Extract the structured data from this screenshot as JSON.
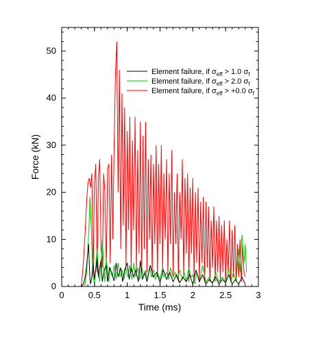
{
  "chart_data": {
    "type": "line",
    "xlabel": "Time (ms)",
    "ylabel": "Force (kN)",
    "xlim": [
      0,
      3
    ],
    "ylim": [
      0,
      55
    ],
    "x_ticks": [
      0,
      0.5,
      1,
      1.5,
      2,
      2.5,
      3
    ],
    "x_tick_labels": [
      "0",
      "0.5",
      "1",
      "1.5",
      "2",
      "2.5",
      "3"
    ],
    "y_ticks": [
      0,
      10,
      20,
      30,
      40,
      50
    ],
    "y_tick_labels": [
      "0",
      "10",
      "20",
      "30",
      "40",
      "50"
    ],
    "grid": false,
    "legend_position": "top-right",
    "series": [
      {
        "name": "Element failure, if σ_eff > 1.0 σ_f",
        "legend_main": "Element failure, if σ",
        "legend_sub1": "eff",
        "legend_mid": " > 1.0 σ",
        "legend_sub2": "f",
        "color": "#000000",
        "points": [
          [
            0.3,
            0
          ],
          [
            0.33,
            0.5
          ],
          [
            0.36,
            2
          ],
          [
            0.38,
            4.5
          ],
          [
            0.4,
            7.5
          ],
          [
            0.41,
            9
          ],
          [
            0.42,
            5
          ],
          [
            0.43,
            2
          ],
          [
            0.44,
            0.5
          ],
          [
            0.46,
            2
          ],
          [
            0.48,
            5
          ],
          [
            0.5,
            1.5
          ],
          [
            0.52,
            3.5
          ],
          [
            0.54,
            6
          ],
          [
            0.56,
            2
          ],
          [
            0.58,
            4
          ],
          [
            0.6,
            5.5
          ],
          [
            0.62,
            1
          ],
          [
            0.65,
            3.5
          ],
          [
            0.68,
            4.5
          ],
          [
            0.7,
            1
          ],
          [
            0.73,
            4
          ],
          [
            0.76,
            3
          ],
          [
            0.8,
            1.2
          ],
          [
            0.83,
            5
          ],
          [
            0.86,
            2
          ],
          [
            0.9,
            4
          ],
          [
            0.93,
            1
          ],
          [
            0.96,
            3.5
          ],
          [
            1.0,
            5
          ],
          [
            1.03,
            1.5
          ],
          [
            1.06,
            4
          ],
          [
            1.1,
            2
          ],
          [
            1.13,
            3.5
          ],
          [
            1.17,
            1
          ],
          [
            1.2,
            5.5
          ],
          [
            1.23,
            1.5
          ],
          [
            1.27,
            3
          ],
          [
            1.3,
            1
          ],
          [
            1.35,
            4.5
          ],
          [
            1.4,
            2
          ],
          [
            1.45,
            3
          ],
          [
            1.5,
            0.8
          ],
          [
            1.55,
            3.5
          ],
          [
            1.6,
            1.5
          ],
          [
            1.65,
            3
          ],
          [
            1.7,
            1
          ],
          [
            1.75,
            2.5
          ],
          [
            1.8,
            0.8
          ],
          [
            1.85,
            2
          ],
          [
            1.9,
            1
          ],
          [
            1.95,
            2.5
          ],
          [
            2.0,
            0.5
          ],
          [
            2.05,
            3.5
          ],
          [
            2.1,
            1
          ],
          [
            2.15,
            2.5
          ],
          [
            2.2,
            0.5
          ],
          [
            2.25,
            1.5
          ],
          [
            2.3,
            0.8
          ],
          [
            2.35,
            2
          ],
          [
            2.4,
            0.5
          ],
          [
            2.45,
            1.5
          ],
          [
            2.5,
            0.8
          ],
          [
            2.55,
            2.5
          ],
          [
            2.6,
            0.5
          ],
          [
            2.65,
            1.5
          ],
          [
            2.7,
            0.5
          ],
          [
            2.75,
            2
          ],
          [
            2.8,
            0.5
          ]
        ]
      },
      {
        "name": "Element failure, if σ_eff > 2.0 σ_f",
        "legend_main": "Element failure, if σ",
        "legend_sub1": "eff",
        "legend_mid": " > 2.0 σ",
        "legend_sub2": "f",
        "color": "#00cc00",
        "points": [
          [
            0.35,
            0
          ],
          [
            0.38,
            3
          ],
          [
            0.4,
            8
          ],
          [
            0.42,
            14
          ],
          [
            0.43,
            19
          ],
          [
            0.44,
            17
          ],
          [
            0.46,
            8
          ],
          [
            0.48,
            2
          ],
          [
            0.5,
            0.5
          ],
          [
            0.52,
            4
          ],
          [
            0.54,
            8
          ],
          [
            0.56,
            3
          ],
          [
            0.58,
            1
          ],
          [
            0.6,
            5
          ],
          [
            0.62,
            10
          ],
          [
            0.64,
            4
          ],
          [
            0.66,
            1
          ],
          [
            0.68,
            6
          ],
          [
            0.7,
            3
          ],
          [
            0.72,
            1
          ],
          [
            0.74,
            4
          ],
          [
            0.77,
            2
          ],
          [
            0.8,
            4.5
          ],
          [
            0.83,
            1.5
          ],
          [
            0.86,
            5
          ],
          [
            0.89,
            2
          ],
          [
            0.92,
            3.5
          ],
          [
            0.95,
            1.5
          ],
          [
            0.98,
            4
          ],
          [
            1.01,
            2
          ],
          [
            1.04,
            4.5
          ],
          [
            1.07,
            1.5
          ],
          [
            1.1,
            5
          ],
          [
            1.13,
            2
          ],
          [
            1.16,
            4
          ],
          [
            1.19,
            1.5
          ],
          [
            1.22,
            4.5
          ],
          [
            1.25,
            2
          ],
          [
            1.28,
            3.5
          ],
          [
            1.31,
            1.5
          ],
          [
            1.34,
            4
          ],
          [
            1.37,
            2
          ],
          [
            1.4,
            3.5
          ],
          [
            1.43,
            1.5
          ],
          [
            1.46,
            3
          ],
          [
            1.5,
            1.5
          ],
          [
            1.53,
            3.5
          ],
          [
            1.56,
            2
          ],
          [
            1.6,
            3
          ],
          [
            1.63,
            1.5
          ],
          [
            1.66,
            4
          ],
          [
            1.7,
            2
          ],
          [
            1.73,
            3
          ],
          [
            1.77,
            1.5
          ],
          [
            1.8,
            3.5
          ],
          [
            1.84,
            1.5
          ],
          [
            1.87,
            3
          ],
          [
            1.9,
            1
          ],
          [
            1.94,
            4
          ],
          [
            1.97,
            2
          ],
          [
            2.0,
            2.5
          ],
          [
            2.03,
            0.5
          ],
          [
            2.06,
            3
          ],
          [
            2.1,
            1
          ],
          [
            2.15,
            4.5
          ],
          [
            2.2,
            1
          ],
          [
            2.25,
            2
          ],
          [
            2.3,
            0.5
          ],
          [
            2.35,
            3
          ],
          [
            2.4,
            1
          ],
          [
            2.45,
            2
          ],
          [
            2.5,
            1
          ],
          [
            2.55,
            4
          ],
          [
            2.58,
            1
          ],
          [
            2.62,
            3
          ],
          [
            2.66,
            1
          ],
          [
            2.7,
            8
          ],
          [
            2.72,
            3
          ],
          [
            2.75,
            11
          ],
          [
            2.78,
            5
          ],
          [
            2.8,
            9
          ],
          [
            2.82,
            3
          ]
        ]
      },
      {
        "name": "Element failure, if σ_eff > +0.0 σ_f",
        "legend_main": "Element failure, if σ",
        "legend_sub1": "eff",
        "legend_mid": " > +0.0 σ",
        "legend_sub2": "f",
        "color": "#ff0000",
        "points": [
          [
            0.3,
            0
          ],
          [
            0.33,
            5
          ],
          [
            0.36,
            12
          ],
          [
            0.38,
            18
          ],
          [
            0.4,
            22
          ],
          [
            0.42,
            23
          ],
          [
            0.44,
            21
          ],
          [
            0.46,
            24
          ],
          [
            0.48,
            2
          ],
          [
            0.5,
            22
          ],
          [
            0.52,
            26
          ],
          [
            0.54,
            3
          ],
          [
            0.56,
            23
          ],
          [
            0.58,
            27
          ],
          [
            0.6,
            8
          ],
          [
            0.62,
            4
          ],
          [
            0.64,
            24
          ],
          [
            0.66,
            20
          ],
          [
            0.68,
            4
          ],
          [
            0.7,
            25
          ],
          [
            0.72,
            26
          ],
          [
            0.74,
            5
          ],
          [
            0.76,
            28
          ],
          [
            0.78,
            10
          ],
          [
            0.8,
            30
          ],
          [
            0.82,
            45
          ],
          [
            0.84,
            52
          ],
          [
            0.86,
            20
          ],
          [
            0.88,
            46
          ],
          [
            0.9,
            8
          ],
          [
            0.92,
            41
          ],
          [
            0.94,
            13
          ],
          [
            0.96,
            38
          ],
          [
            0.98,
            4
          ],
          [
            1.0,
            33
          ],
          [
            1.02,
            12
          ],
          [
            1.04,
            36
          ],
          [
            1.06,
            3
          ],
          [
            1.08,
            31
          ],
          [
            1.1,
            12
          ],
          [
            1.12,
            36
          ],
          [
            1.14,
            3
          ],
          [
            1.16,
            29
          ],
          [
            1.18,
            7
          ],
          [
            1.2,
            35
          ],
          [
            1.22,
            3
          ],
          [
            1.24,
            32
          ],
          [
            1.26,
            8
          ],
          [
            1.28,
            35
          ],
          [
            1.3,
            3
          ],
          [
            1.32,
            27
          ],
          [
            1.34,
            10
          ],
          [
            1.36,
            28
          ],
          [
            1.38,
            2
          ],
          [
            1.4,
            26
          ],
          [
            1.42,
            9
          ],
          [
            1.44,
            30
          ],
          [
            1.46,
            2
          ],
          [
            1.48,
            26
          ],
          [
            1.5,
            9
          ],
          [
            1.52,
            30
          ],
          [
            1.54,
            3
          ],
          [
            1.56,
            24
          ],
          [
            1.58,
            10
          ],
          [
            1.6,
            27
          ],
          [
            1.62,
            2
          ],
          [
            1.64,
            24
          ],
          [
            1.66,
            9
          ],
          [
            1.68,
            29
          ],
          [
            1.7,
            2
          ],
          [
            1.72,
            20
          ],
          [
            1.74,
            9
          ],
          [
            1.76,
            24
          ],
          [
            1.78,
            1
          ],
          [
            1.8,
            20
          ],
          [
            1.82,
            10
          ],
          [
            1.84,
            27
          ],
          [
            1.86,
            2
          ],
          [
            1.88,
            23
          ],
          [
            1.9,
            7
          ],
          [
            1.92,
            24
          ],
          [
            1.94,
            1
          ],
          [
            1.96,
            21
          ],
          [
            1.98,
            7
          ],
          [
            2.0,
            23
          ],
          [
            2.02,
            1
          ],
          [
            2.04,
            20
          ],
          [
            2.06,
            5
          ],
          [
            2.08,
            21
          ],
          [
            2.1,
            1
          ],
          [
            2.12,
            18
          ],
          [
            2.14,
            5
          ],
          [
            2.16,
            19
          ],
          [
            2.18,
            1
          ],
          [
            2.2,
            18
          ],
          [
            2.22,
            4
          ],
          [
            2.24,
            17
          ],
          [
            2.26,
            1
          ],
          [
            2.28,
            14
          ],
          [
            2.3,
            4
          ],
          [
            2.32,
            17
          ],
          [
            2.34,
            1
          ],
          [
            2.36,
            14
          ],
          [
            2.38,
            3
          ],
          [
            2.4,
            15
          ],
          [
            2.42,
            1
          ],
          [
            2.44,
            13
          ],
          [
            2.46,
            3
          ],
          [
            2.48,
            14
          ],
          [
            2.5,
            0.5
          ],
          [
            2.52,
            10
          ],
          [
            2.54,
            3
          ],
          [
            2.56,
            14
          ],
          [
            2.58,
            1
          ],
          [
            2.6,
            12
          ],
          [
            2.62,
            2
          ],
          [
            2.64,
            13
          ],
          [
            2.66,
            1
          ],
          [
            2.68,
            9
          ],
          [
            2.7,
            2
          ],
          [
            2.72,
            10
          ],
          [
            2.74,
            1
          ],
          [
            2.76,
            9
          ],
          [
            2.78,
            3
          ],
          [
            2.8,
            2
          ]
        ]
      }
    ]
  }
}
